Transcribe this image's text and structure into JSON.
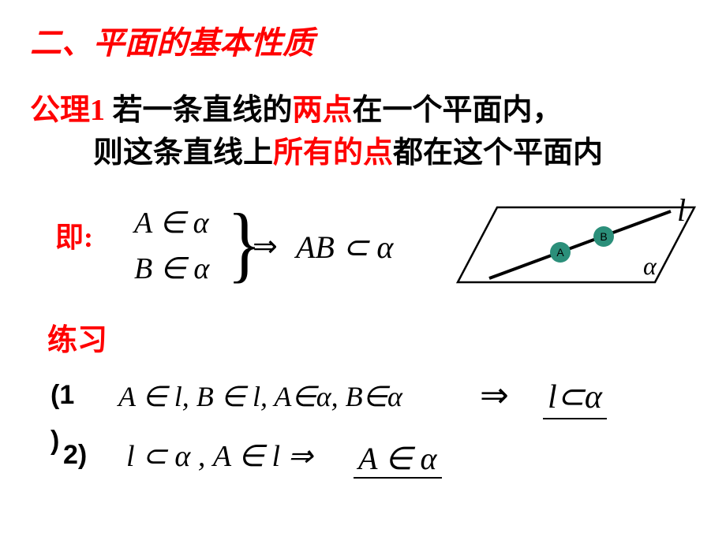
{
  "title": "二、平面的基本性质",
  "title_color": "#ff0000",
  "axiom": {
    "label": "公理1",
    "line1_black1": "  若一条直线的",
    "line1_red": "两点",
    "line1_black2": "在一个平面内，",
    "line2_black1": "则这条直线上",
    "line2_red": "所有的点",
    "line2_black2": "都在这个平面内"
  },
  "ji": "即:",
  "premise1": "A ∈ α",
  "premise2": "B ∈ α",
  "implies": "⇒",
  "conclusion": "AB ⊂ α",
  "lianxi": "练习",
  "ex1": {
    "num": "(1",
    "close": ")",
    "math": "A ∈ l, B ∈ l, A∈α, B∈α",
    "arrow": "⇒",
    "ans": "l⊂α"
  },
  "ex2": {
    "num": "2)",
    "math": "l ⊂ α , A ∈ l ⇒",
    "ans": "A ∈ α"
  },
  "diagram": {
    "line_l_label": "l",
    "alpha_label": "α",
    "pointA": "A",
    "pointB": "B",
    "parallelogram_stroke": "#000000",
    "line_stroke": "#000000",
    "circle_fill": "#2b8f7a",
    "circle_r": 13
  }
}
